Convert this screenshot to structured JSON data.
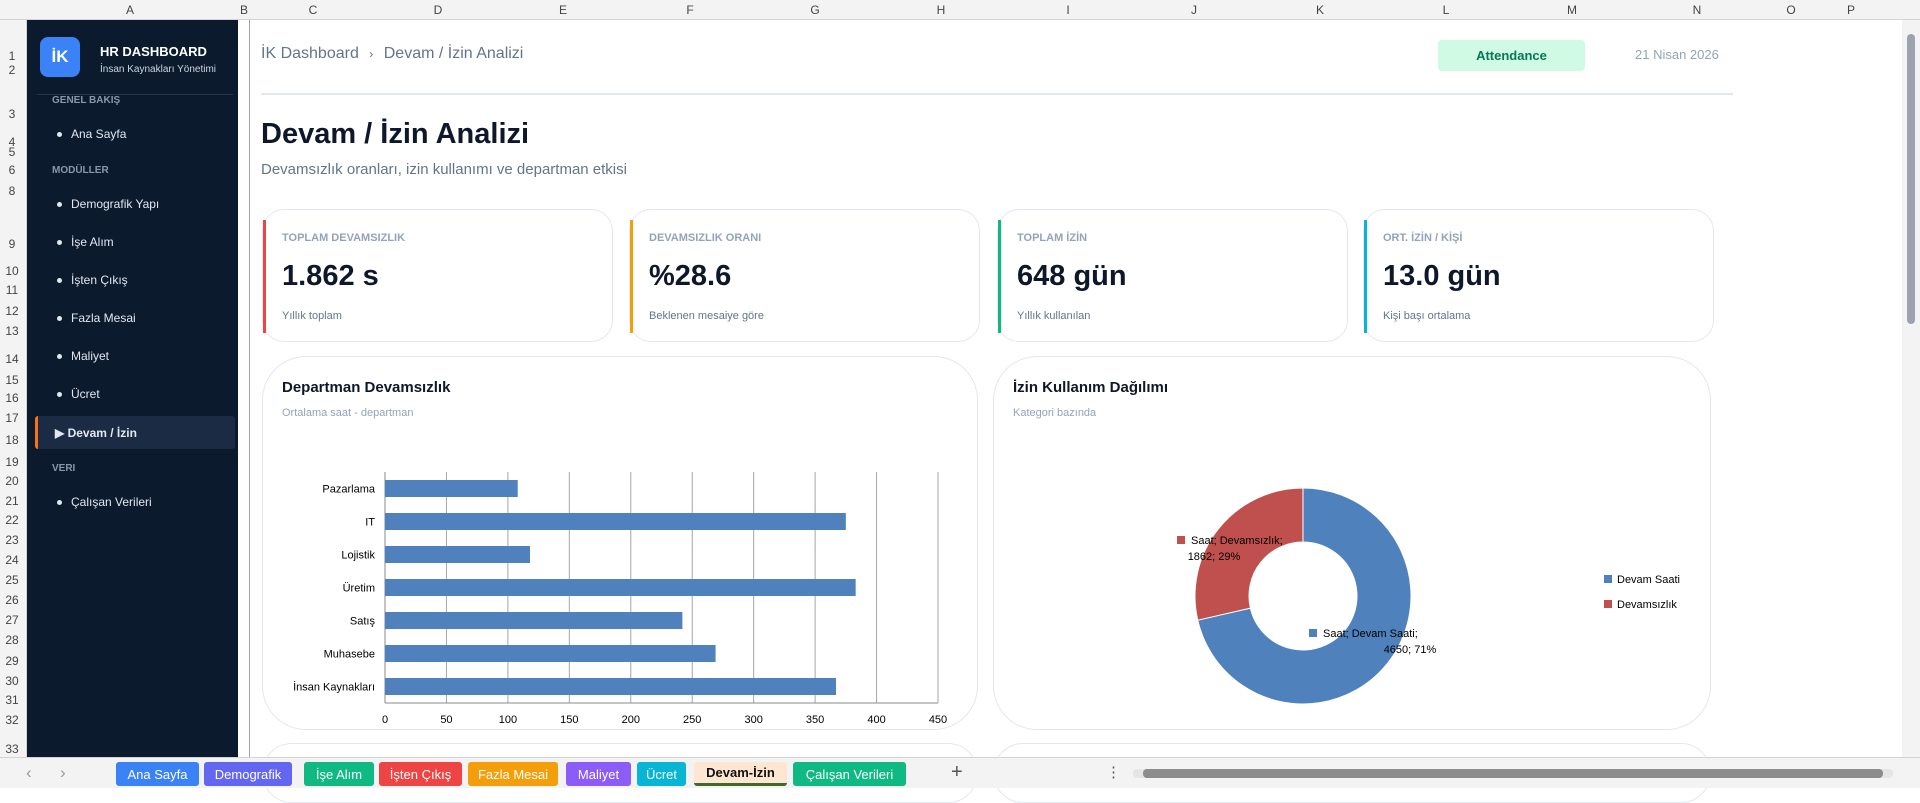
{
  "sheet": {
    "columns": [
      "A",
      "B",
      "C",
      "D",
      "E",
      "F",
      "G",
      "H",
      "I",
      "J",
      "K",
      "L",
      "M",
      "N",
      "O",
      "P"
    ],
    "rows": [
      "1",
      "2",
      "3",
      "4",
      "5",
      "6",
      "8",
      "9",
      "10",
      "11",
      "12",
      "13",
      "14",
      "15",
      "16",
      "17",
      "18",
      "19",
      "20",
      "21",
      "22",
      "23",
      "24",
      "25",
      "26",
      "27",
      "28",
      "29",
      "30",
      "31",
      "32",
      "33"
    ]
  },
  "sidebar": {
    "logo": "İK",
    "title": "HR DASHBOARD",
    "subtitle": "İnsan Kaynakları Yönetimi",
    "sections": [
      {
        "label": "GENEL BAKIŞ",
        "items": [
          {
            "label": "Ana Sayfa"
          }
        ]
      },
      {
        "label": "MODÜLLER",
        "items": [
          {
            "label": "Demografik Yapı"
          },
          {
            "label": "İşe Alım"
          },
          {
            "label": "İşten Çıkış"
          },
          {
            "label": "Fazla Mesai"
          },
          {
            "label": "Maliyet"
          },
          {
            "label": "Ücret"
          },
          {
            "label": "▶ Devam / İzin",
            "active": true
          }
        ]
      },
      {
        "label": "VERI",
        "items": [
          {
            "label": "Çalışan Verileri"
          }
        ]
      }
    ]
  },
  "header": {
    "breadcrumb_root": "İK Dashboard",
    "breadcrumb_sep": "›",
    "breadcrumb_current": "Devam / İzin Analizi",
    "badge": "Attendance",
    "date": "21 Nisan 2026"
  },
  "page": {
    "title": "Devam / İzin Analizi",
    "subtitle": "Devamsızlık oranları, izin kullanımı ve departman etkisi"
  },
  "kpis": [
    {
      "label": "TOPLAM DEVAMSIZLIK",
      "value": "1.862 s",
      "note": "Yıllık toplam",
      "color": "#ef4444"
    },
    {
      "label": "DEVAMSIZLIK ORANI",
      "value": "%28.6",
      "note": "Beklenen mesaiye göre",
      "color": "#f59e0b"
    },
    {
      "label": "TOPLAM İZİN",
      "value": "648 gün",
      "note": "Yıllık kullanılan",
      "color": "#10b981"
    },
    {
      "label": "ORT. İZİN / KİŞİ",
      "value": "13.0 gün",
      "note": "Kişi başı ortalama",
      "color": "#06b6d4"
    }
  ],
  "charts": {
    "bar_card": {
      "title": "Departman Devamsızlık",
      "subtitle": "Ortalama saat - departman"
    },
    "donut_card": {
      "title": "İzin Kullanım Dağılımı",
      "subtitle": "Kategori bazında"
    }
  },
  "chart_data": [
    {
      "type": "bar",
      "orientation": "horizontal",
      "categories": [
        "Pazarlama",
        "IT",
        "Lojistik",
        "Üretim",
        "Satış",
        "Muhasebe",
        "İnsan Kaynakları"
      ],
      "values": [
        108,
        375,
        118,
        383,
        242,
        269,
        367
      ],
      "xlim": [
        0,
        450
      ],
      "xticks": [
        "0",
        "50",
        "100",
        "150",
        "200",
        "250",
        "300",
        "350",
        "400",
        "450"
      ],
      "grid": true,
      "color": "#4f81bd"
    },
    {
      "type": "pie",
      "donut": true,
      "slices": [
        {
          "label": "Devam Saati",
          "value": 4650,
          "percent": 71,
          "color": "#4f81bd",
          "data_label": [
            "Saat; Devam Saati;",
            "4650; 71%"
          ]
        },
        {
          "label": "Devamsızlık",
          "value": 1862,
          "percent": 29,
          "color": "#c0504d",
          "data_label": [
            "Saat; Devamsızlık;",
            "1862; 29%"
          ]
        }
      ],
      "legend": [
        "Devam Saati",
        "Devamsızlık"
      ],
      "legend_position": "right"
    }
  ],
  "tabs": [
    {
      "label": "Ana Sayfa",
      "color": "#3b82f6"
    },
    {
      "label": "Demografik",
      "color": "#6366f1"
    },
    {
      "label": "İşe Alım",
      "color": "#10b981"
    },
    {
      "label": "İşten Çıkış",
      "color": "#ef4444"
    },
    {
      "label": "Fazla Mesai",
      "color": "#f59e0b"
    },
    {
      "label": "Maliyet",
      "color": "#8b5cf6"
    },
    {
      "label": "Ücret",
      "color": "#06b6d4"
    },
    {
      "label": "Devam-İzin",
      "color": "#fde6d2",
      "active": true
    },
    {
      "label": "Çalışan Verileri",
      "color": "#10b981"
    }
  ],
  "tabbar": {
    "add": "+",
    "more": "⋮",
    "prev": "‹",
    "next": "›"
  }
}
